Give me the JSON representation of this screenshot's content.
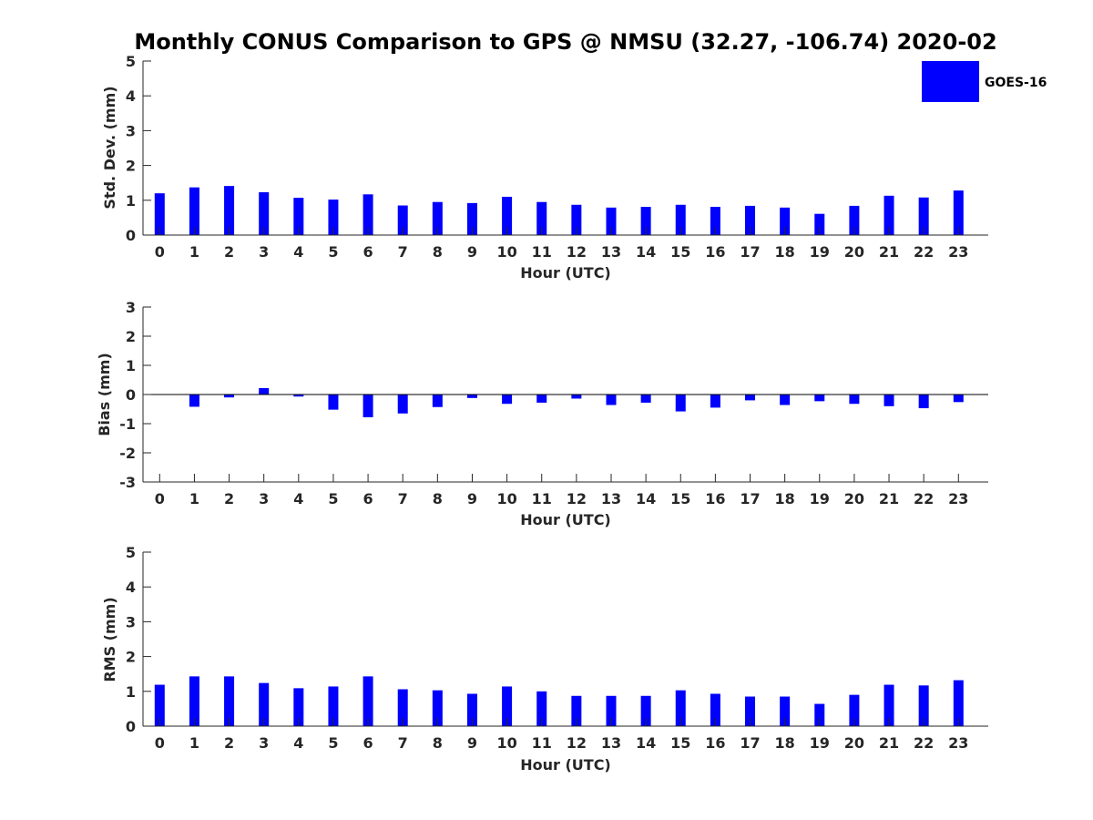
{
  "chart_data": [
    {
      "type": "bar",
      "title": "Monthly CONUS Comparison to GPS @ NMSU (32.27, -106.74) 2020-02",
      "xlabel": "Hour (UTC)",
      "ylabel": "Std. Dev. (mm)",
      "ylim": [
        0,
        5
      ],
      "yticks": [
        "0",
        "1",
        "2",
        "3",
        "4",
        "5"
      ],
      "categories": [
        "0",
        "1",
        "2",
        "3",
        "4",
        "5",
        "6",
        "7",
        "8",
        "9",
        "10",
        "11",
        "12",
        "13",
        "14",
        "15",
        "16",
        "17",
        "18",
        "19",
        "20",
        "21",
        "22",
        "23"
      ],
      "series": [
        {
          "name": "GOES-16",
          "color": "#0000ff",
          "values": [
            1.2,
            1.37,
            1.41,
            1.23,
            1.07,
            1.02,
            1.17,
            0.85,
            0.95,
            0.92,
            1.1,
            0.95,
            0.87,
            0.79,
            0.81,
            0.87,
            0.81,
            0.84,
            0.79,
            0.61,
            0.84,
            1.13,
            1.08,
            1.28
          ]
        }
      ],
      "legend": {
        "position": "top-right",
        "label": "GOES-16"
      }
    },
    {
      "type": "bar",
      "xlabel": "Hour (UTC)",
      "ylabel": "Bias (mm)",
      "ylim": [
        -3,
        3
      ],
      "yticks": [
        "-3",
        "-2",
        "-1",
        "0",
        "1",
        "2",
        "3"
      ],
      "categories": [
        "0",
        "1",
        "2",
        "3",
        "4",
        "5",
        "6",
        "7",
        "8",
        "9",
        "10",
        "11",
        "12",
        "13",
        "14",
        "15",
        "16",
        "17",
        "18",
        "19",
        "20",
        "21",
        "22",
        "23"
      ],
      "series": [
        {
          "name": "GOES-16",
          "color": "#0000ff",
          "values": [
            0.0,
            -0.42,
            -0.1,
            0.22,
            -0.07,
            -0.52,
            -0.78,
            -0.65,
            -0.43,
            -0.12,
            -0.32,
            -0.28,
            -0.14,
            -0.36,
            -0.28,
            -0.58,
            -0.45,
            -0.2,
            -0.36,
            -0.23,
            -0.32,
            -0.4,
            -0.47,
            -0.26
          ]
        }
      ]
    },
    {
      "type": "bar",
      "xlabel": "Hour (UTC)",
      "ylabel": "RMS (mm)",
      "ylim": [
        0,
        5
      ],
      "yticks": [
        "0",
        "1",
        "2",
        "3",
        "4",
        "5"
      ],
      "categories": [
        "0",
        "1",
        "2",
        "3",
        "4",
        "5",
        "6",
        "7",
        "8",
        "9",
        "10",
        "11",
        "12",
        "13",
        "14",
        "15",
        "16",
        "17",
        "18",
        "19",
        "20",
        "21",
        "22",
        "23"
      ],
      "series": [
        {
          "name": "GOES-16",
          "color": "#0000ff",
          "values": [
            1.19,
            1.43,
            1.43,
            1.24,
            1.09,
            1.14,
            1.43,
            1.06,
            1.03,
            0.93,
            1.14,
            1.0,
            0.87,
            0.87,
            0.87,
            1.03,
            0.93,
            0.85,
            0.85,
            0.64,
            0.9,
            1.19,
            1.17,
            1.32
          ]
        }
      ]
    }
  ]
}
